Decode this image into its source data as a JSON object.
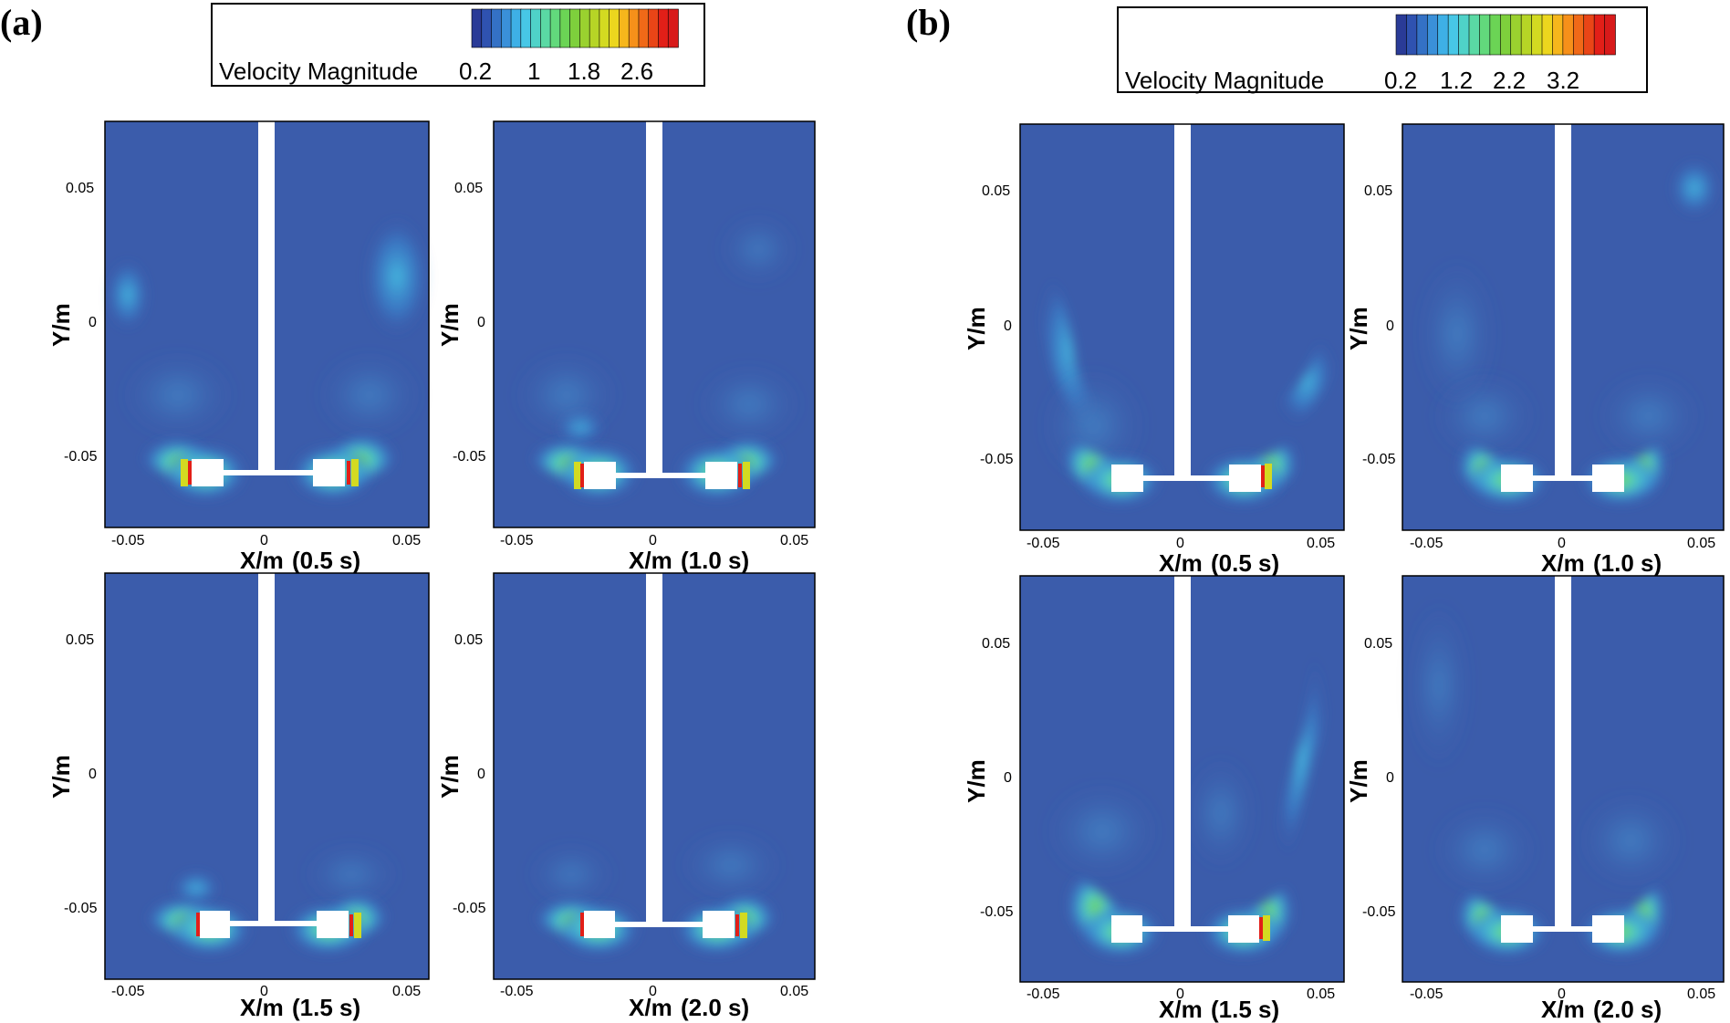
{
  "figure": {
    "panels": [
      {
        "label": "(a)",
        "legend": {
          "title": "Velocity Magnitude",
          "ticks": [
            "0.2",
            "1",
            "1.8",
            "2.6"
          ]
        },
        "ylabel": "Y/m",
        "xlabel": "X/m",
        "x_ticks": [
          "-0.05",
          "0",
          "0.05"
        ],
        "y_ticks": [
          "0.05",
          "0",
          "-0.05"
        ],
        "subplots": [
          {
            "time": "(0.5 s)"
          },
          {
            "time": "(1.0 s)"
          },
          {
            "time": "(1.5 s)"
          },
          {
            "time": "(2.0 s)"
          }
        ]
      },
      {
        "label": "(b)",
        "legend": {
          "title": "Velocity Magnitude",
          "ticks": [
            "0.2",
            "1.2",
            "2.2",
            "3.2"
          ]
        },
        "ylabel": "Y/m",
        "xlabel": "X/m",
        "x_ticks": [
          "-0.05",
          "0",
          "0.05"
        ],
        "y_ticks": [
          "0.05",
          "0",
          "-0.05"
        ],
        "subplots": [
          {
            "time": "(0.5 s)"
          },
          {
            "time": "(1.0 s)"
          },
          {
            "time": "(1.5 s)"
          },
          {
            "time": "(2.0 s)"
          }
        ]
      }
    ],
    "colors": {
      "background_field": "#3b5cab",
      "low": "#2f4aa3",
      "mid": "#38b6e4",
      "high": "#7bd23c",
      "peak": "#e81c1c",
      "impeller": "#ffffff"
    },
    "colormap": [
      "#2a3b97",
      "#2f52b0",
      "#3471c5",
      "#3a90d9",
      "#3eb0e6",
      "#47c7e6",
      "#4fd2c8",
      "#5ad9a4",
      "#62d97c",
      "#6bd455",
      "#7ed03c",
      "#9ad12f",
      "#b6d526",
      "#d3da21",
      "#ecd61e",
      "#f6b61c",
      "#f6901a",
      "#f06918",
      "#e94517",
      "#e21f18",
      "#d81a1a"
    ]
  }
}
